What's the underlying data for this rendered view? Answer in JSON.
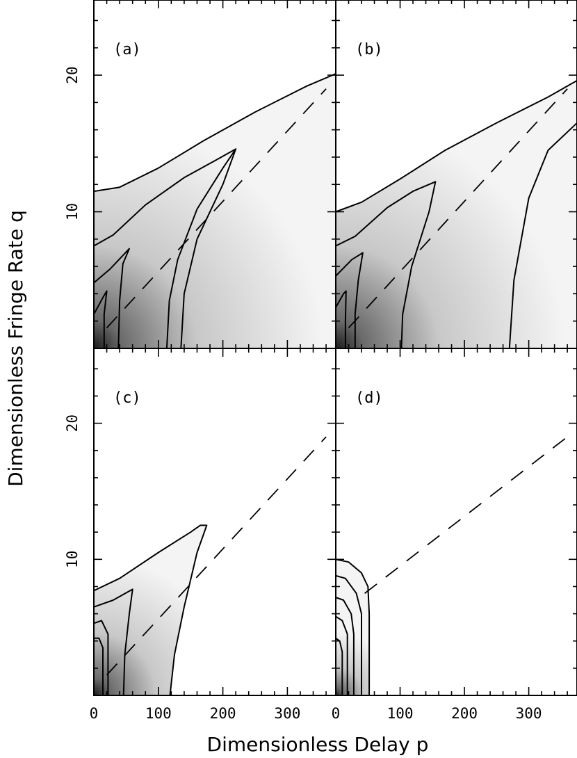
{
  "chart_data": {
    "type": "contour",
    "xlabel": "Dimensionless Delay  p",
    "ylabel": "Dimensionless Fringe Rate  q",
    "xlim": [
      0,
      375
    ],
    "ylim": [
      0,
      25.5
    ],
    "x_ticks": [
      0,
      100,
      200,
      300
    ],
    "y_ticks": [
      10,
      20
    ],
    "layout": "2x2 grid, shared axes",
    "colormap": "grayscale, dark = high",
    "panels": [
      {
        "label": "(a)",
        "dashed_ridge": [
          [
            20,
            1.5
          ],
          [
            360,
            19
          ]
        ],
        "contours": [
          [
            [
              0,
              11.5
            ],
            [
              40,
              11.8
            ],
            [
              100,
              13.2
            ],
            [
              170,
              15.2
            ],
            [
              250,
              17.3
            ],
            [
              330,
              19.2
            ],
            [
              375,
              20.1
            ]
          ],
          [
            [
              0,
              7.5
            ],
            [
              30,
              8.3
            ],
            [
              80,
              10.5
            ],
            [
              140,
              12.5
            ],
            [
              190,
              13.8
            ],
            [
              220,
              14.6
            ],
            [
              200,
              13.2
            ],
            [
              160,
              10.2
            ],
            [
              130,
              6.5
            ],
            [
              117,
              3.5
            ],
            [
              113,
              0
            ]
          ],
          [
            [
              0,
              4.8
            ],
            [
              25,
              5.8
            ],
            [
              55,
              7.3
            ],
            [
              45,
              6.2
            ],
            [
              40,
              3.5
            ],
            [
              38,
              0
            ]
          ],
          [
            [
              0,
              2.5
            ],
            [
              15,
              3.8
            ],
            [
              20,
              4.2
            ],
            [
              16,
              2.5
            ],
            [
              16,
              0
            ]
          ],
          [
            [
              220,
              14.6
            ],
            [
              200,
              12.0
            ],
            [
              160,
              8.0
            ],
            [
              140,
              4.0
            ],
            [
              135,
              0
            ]
          ]
        ]
      },
      {
        "label": "(b)",
        "dashed_ridge": [
          [
            20,
            1.5
          ],
          [
            360,
            19
          ]
        ],
        "contours": [
          [
            [
              0,
              10
            ],
            [
              40,
              10.7
            ],
            [
              100,
              12.4
            ],
            [
              170,
              14.5
            ],
            [
              250,
              16.5
            ],
            [
              330,
              18.4
            ],
            [
              375,
              19.6
            ]
          ],
          [
            [
              0,
              7.5
            ],
            [
              30,
              8.2
            ],
            [
              80,
              10.3
            ],
            [
              120,
              11.5
            ],
            [
              155,
              12.2
            ],
            [
              145,
              10.0
            ],
            [
              118,
              6.0
            ],
            [
              104,
              2.5
            ],
            [
              102,
              0
            ]
          ],
          [
            [
              0,
              5.3
            ],
            [
              25,
              6.5
            ],
            [
              42,
              7.0
            ],
            [
              35,
              5.0
            ],
            [
              30,
              2.5
            ],
            [
              30,
              0
            ]
          ],
          [
            [
              0,
              3.0
            ],
            [
              12,
              4.0
            ],
            [
              16,
              4.2
            ],
            [
              15,
              2.0
            ],
            [
              15,
              0
            ]
          ],
          [
            [
              270,
              0
            ],
            [
              277,
              5
            ],
            [
              300,
              11
            ],
            [
              330,
              14.5
            ],
            [
              375,
              16.5
            ]
          ]
        ]
      },
      {
        "label": "(c)",
        "dashed_ridge": [
          [
            20,
            1.5
          ],
          [
            360,
            19
          ]
        ],
        "contours": [
          [
            [
              0,
              7.7
            ],
            [
              40,
              8.6
            ],
            [
              100,
              10.5
            ],
            [
              150,
              12.0
            ],
            [
              165,
              12.5
            ],
            [
              175,
              12.5
            ],
            [
              160,
              10.5
            ],
            [
              140,
              6.5
            ],
            [
              125,
              3.0
            ],
            [
              118,
              0
            ]
          ],
          [
            [
              0,
              6.5
            ],
            [
              30,
              7.0
            ],
            [
              60,
              7.8
            ],
            [
              55,
              6.0
            ],
            [
              48,
              3.0
            ],
            [
              46,
              0
            ]
          ],
          [
            [
              0,
              5.3
            ],
            [
              12,
              5.5
            ],
            [
              22,
              4.5
            ],
            [
              22,
              0
            ]
          ],
          [
            [
              0,
              4.2
            ],
            [
              8,
              4.2
            ],
            [
              14,
              3.5
            ],
            [
              14,
              0
            ]
          ]
        ]
      },
      {
        "label": "(d)",
        "dashed_ridge": [
          [
            45,
            7.5
          ],
          [
            360,
            19
          ]
        ],
        "contours": [
          [
            [
              0,
              10
            ],
            [
              20,
              9.8
            ],
            [
              40,
              9.0
            ],
            [
              50,
              8.0
            ],
            [
              52,
              6.0
            ],
            [
              52,
              0
            ]
          ],
          [
            [
              0,
              8.8
            ],
            [
              15,
              8.6
            ],
            [
              32,
              7.5
            ],
            [
              40,
              6.0
            ],
            [
              40,
              0
            ]
          ],
          [
            [
              0,
              7.2
            ],
            [
              12,
              7.0
            ],
            [
              24,
              6.0
            ],
            [
              28,
              4.5
            ],
            [
              28,
              0
            ]
          ],
          [
            [
              0,
              5.8
            ],
            [
              10,
              5.5
            ],
            [
              18,
              4.5
            ],
            [
              18,
              0
            ]
          ],
          [
            [
              0,
              4.2
            ],
            [
              6,
              4.0
            ],
            [
              10,
              3.2
            ],
            [
              10,
              0
            ]
          ]
        ]
      }
    ]
  }
}
